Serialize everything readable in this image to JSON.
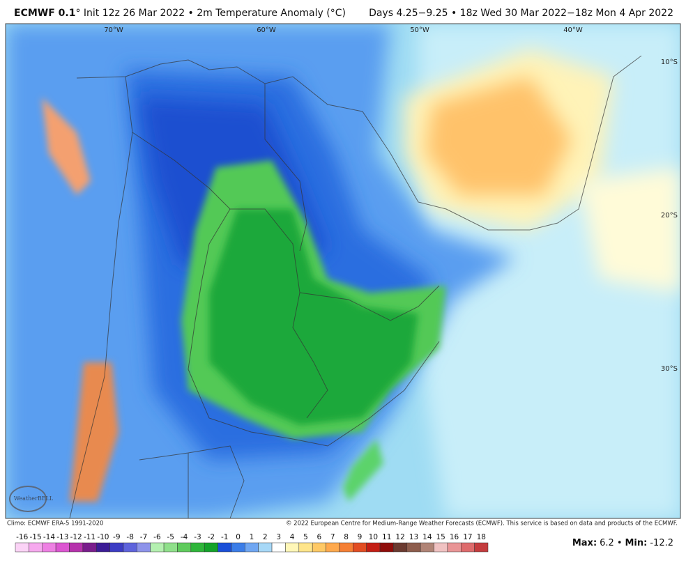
{
  "header": {
    "model": "ECMWF 0.1",
    "title_rest": "° Init 12z 26 Mar 2022 • 2m Temperature Anomaly (°C)",
    "valid": "Days 4.25−9.25 • 18z Wed 30 Mar 2022−18z Mon 4 Apr 2022"
  },
  "map": {
    "lon_labels": [
      "70°W",
      "60°W",
      "50°W",
      "40°W"
    ],
    "lat_labels": [
      "10°S",
      "20°S",
      "30°S"
    ],
    "logo": "WeatherBELL"
  },
  "footer": {
    "climo": "Climo: ECMWF ERA-5 1991-2020",
    "copyright": "© 2022 European Centre for Medium-Range Weather Forecasts (ECMWF). This service is based on data and products of the ECMWF."
  },
  "colorbar": {
    "labels": [
      -16,
      -15,
      -14,
      -13,
      -12,
      -11,
      -10,
      -9,
      -8,
      -7,
      -6,
      -5,
      -4,
      -3,
      -2,
      -1,
      0,
      1,
      2,
      3,
      4,
      5,
      6,
      7,
      8,
      9,
      10,
      11,
      12,
      13,
      14,
      15,
      16,
      17,
      18
    ],
    "colors": [
      "#fbd3f6",
      "#f6a9ee",
      "#ee80e3",
      "#dc55d1",
      "#b632ac",
      "#7a1d8c",
      "#3c1c96",
      "#3c3cc4",
      "#5e63dc",
      "#8d93ea",
      "#b4f0b0",
      "#8fe08a",
      "#5fcb5c",
      "#2fb63a",
      "#14a32a",
      "#1a4fd8",
      "#3b7de8",
      "#6fa6f2",
      "#a7d8f7",
      "#ffffff",
      "#fff7b8",
      "#ffe58a",
      "#ffc965",
      "#ffa94d",
      "#f57f34",
      "#e24d22",
      "#c41e14",
      "#8f0d0a",
      "#6b3a30",
      "#8d5c4c",
      "#b08476",
      "#f0c2c2",
      "#e99596",
      "#de6b6c",
      "#c43c3e"
    ]
  },
  "stats": {
    "max_label": "Max:",
    "max": 6.2,
    "separator": "•",
    "min_label": "Min:",
    "min": -12.2
  }
}
